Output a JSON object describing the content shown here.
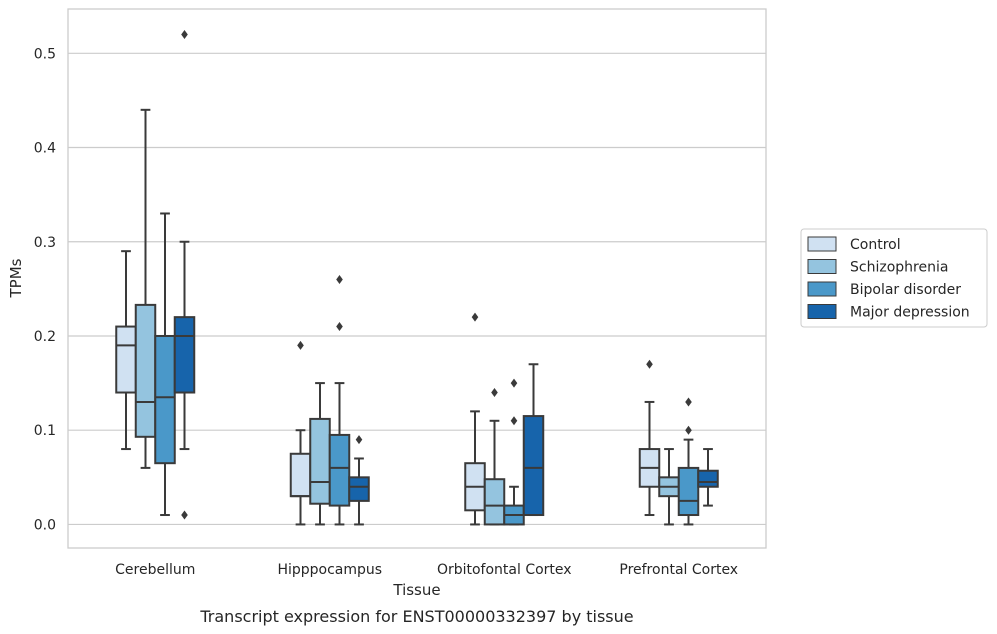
{
  "caption": "Transcript expression for ENST00000332397 by tissue",
  "chart_data": {
    "type": "box",
    "xlabel": "Tissue",
    "ylabel": "TPMs",
    "ylim": [
      -0.025,
      0.547
    ],
    "yticks": [
      "0.0",
      "0.1",
      "0.2",
      "0.3",
      "0.4",
      "0.5"
    ],
    "grid": "horizontal",
    "legend_position": "right",
    "categories": [
      "Cerebellum",
      "Hipppocampus",
      "Orbitofontal Cortex",
      "Prefrontal Cortex"
    ],
    "series": [
      {
        "name": "Control",
        "color": "#d0e1f2",
        "boxes": [
          {
            "whislo": 0.08,
            "q1": 0.14,
            "med": 0.19,
            "q3": 0.21,
            "whishi": 0.29,
            "fliers": []
          },
          {
            "whislo": 0.0,
            "q1": 0.03,
            "med": 0.03,
            "q3": 0.075,
            "whishi": 0.1,
            "fliers": [
              0.19
            ]
          },
          {
            "whislo": 0.0,
            "q1": 0.015,
            "med": 0.04,
            "q3": 0.065,
            "whishi": 0.12,
            "fliers": [
              0.22
            ]
          },
          {
            "whislo": 0.01,
            "q1": 0.04,
            "med": 0.06,
            "q3": 0.08,
            "whishi": 0.13,
            "fliers": [
              0.17
            ]
          }
        ]
      },
      {
        "name": "Schizophrenia",
        "color": "#94c4df",
        "boxes": [
          {
            "whislo": 0.06,
            "q1": 0.093,
            "med": 0.13,
            "q3": 0.233,
            "whishi": 0.44,
            "fliers": []
          },
          {
            "whislo": 0.0,
            "q1": 0.022,
            "med": 0.045,
            "q3": 0.112,
            "whishi": 0.15,
            "fliers": []
          },
          {
            "whislo": 0.0,
            "q1": 0.0,
            "med": 0.02,
            "q3": 0.048,
            "whishi": 0.11,
            "fliers": [
              0.14
            ]
          },
          {
            "whislo": 0.0,
            "q1": 0.03,
            "med": 0.04,
            "q3": 0.05,
            "whishi": 0.08,
            "fliers": []
          }
        ]
      },
      {
        "name": "Bipolar disorder",
        "color": "#4a98c9",
        "boxes": [
          {
            "whislo": 0.01,
            "q1": 0.065,
            "med": 0.135,
            "q3": 0.2,
            "whishi": 0.33,
            "fliers": []
          },
          {
            "whislo": 0.0,
            "q1": 0.02,
            "med": 0.06,
            "q3": 0.095,
            "whishi": 0.15,
            "fliers": [
              0.21,
              0.26
            ]
          },
          {
            "whislo": 0.0,
            "q1": 0.0,
            "med": 0.01,
            "q3": 0.02,
            "whishi": 0.04,
            "fliers": [
              0.11,
              0.15
            ]
          },
          {
            "whislo": 0.0,
            "q1": 0.01,
            "med": 0.025,
            "q3": 0.06,
            "whishi": 0.09,
            "fliers": [
              0.1,
              0.13
            ]
          }
        ]
      },
      {
        "name": "Major depression",
        "color": "#1764ab",
        "boxes": [
          {
            "whislo": 0.08,
            "q1": 0.14,
            "med": 0.2,
            "q3": 0.22,
            "whishi": 0.3,
            "fliers": [
              0.01,
              0.52
            ]
          },
          {
            "whislo": 0.0,
            "q1": 0.025,
            "med": 0.04,
            "q3": 0.05,
            "whishi": 0.07,
            "fliers": [
              0.09
            ]
          },
          {
            "whislo": 0.01,
            "q1": 0.01,
            "med": 0.06,
            "q3": 0.115,
            "whishi": 0.17,
            "fliers": []
          },
          {
            "whislo": 0.02,
            "q1": 0.04,
            "med": 0.045,
            "q3": 0.057,
            "whishi": 0.08,
            "fliers": []
          }
        ]
      }
    ]
  }
}
